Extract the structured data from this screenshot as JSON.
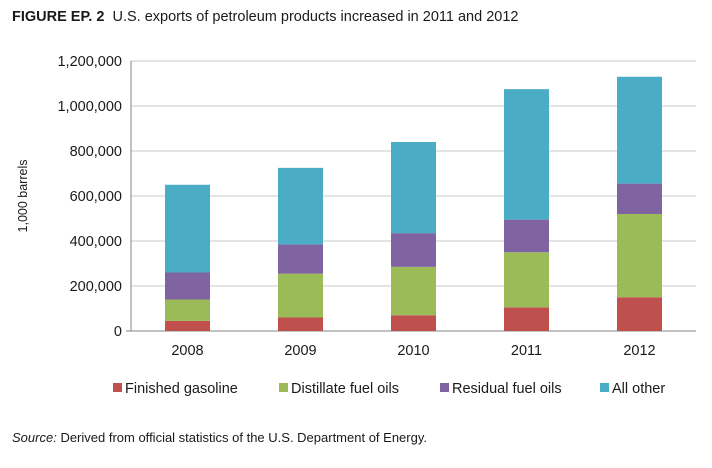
{
  "title": {
    "label": "FIGURE EP. 2",
    "text": "U.S. exports of petroleum products increased in 2011 and 2012"
  },
  "source": {
    "label": "Source:",
    "text": "Derived from official statistics of the U.S. Department of Energy."
  },
  "chart_data": {
    "type": "bar",
    "stacked": true,
    "categories": [
      "2008",
      "2009",
      "2010",
      "2011",
      "2012"
    ],
    "series": [
      {
        "name": "Finished gasoline",
        "color": "#c0504d",
        "values": [
          45000,
          60000,
          70000,
          105000,
          150000
        ]
      },
      {
        "name": "Distillate fuel oils",
        "color": "#9bbb59",
        "values": [
          95000,
          195000,
          215000,
          245000,
          370000
        ]
      },
      {
        "name": "Residual fuel oils",
        "color": "#8064a2",
        "values": [
          120000,
          130000,
          150000,
          145000,
          135000
        ]
      },
      {
        "name": "All other",
        "color": "#4bacc6",
        "values": [
          390000,
          340000,
          405000,
          580000,
          475000
        ]
      }
    ],
    "ylabel": "1,000 barrels",
    "xlabel": "",
    "ylim": [
      0,
      1200000
    ],
    "yticks": [
      "0",
      "200,000",
      "400,000",
      "600,000",
      "800,000",
      "1,000,000",
      "1,200,000"
    ],
    "ytick_values": [
      0,
      200000,
      400000,
      600000,
      800000,
      1000000,
      1200000
    ],
    "grid": true,
    "legend_position": "bottom"
  }
}
